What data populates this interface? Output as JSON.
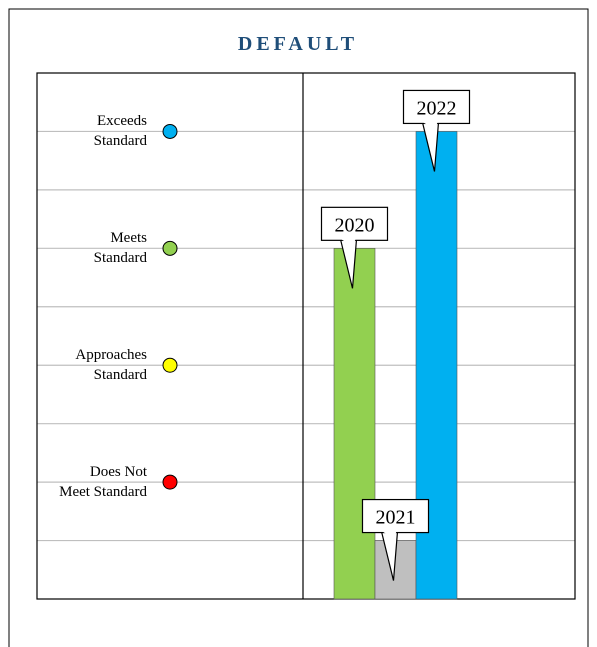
{
  "chart_data": {
    "type": "bar",
    "title": "DEFAULT",
    "categories": [
      "2020",
      "2021",
      "2022"
    ],
    "values": [
      6,
      1,
      8
    ],
    "colors": [
      "#92d050",
      "#bfbfbf",
      "#00b0f0"
    ],
    "ylim": [
      0,
      9
    ],
    "yticks": [
      1,
      2,
      3,
      4,
      5,
      6,
      7,
      8
    ],
    "grid": true,
    "levels": [
      {
        "value": 8,
        "label": "Exceeds Standard",
        "color": "#00b0f0"
      },
      {
        "value": 6,
        "label": "Meets Standard",
        "color": "#92d050"
      },
      {
        "value": 4,
        "label": "Approaches Standard",
        "color": "#ffff00"
      },
      {
        "value": 2,
        "label": "Does Not Meet Standard",
        "color": "#ff0000"
      }
    ]
  }
}
